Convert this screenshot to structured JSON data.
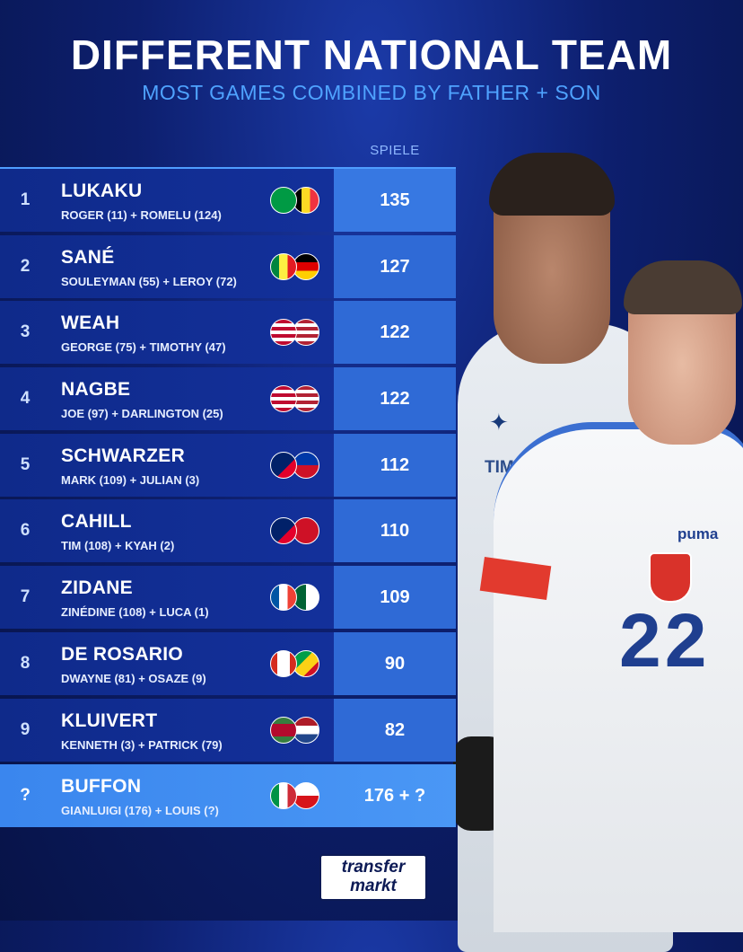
{
  "header": {
    "title": "DIFFERENT NATIONAL TEAM",
    "subtitle": "MOST GAMES COMBINED BY FATHER + SON",
    "games_column": "SPIELE"
  },
  "rows": [
    {
      "rank": "1",
      "name": "LUKAKU",
      "detail": "ROGER (11) + ROMELU (124)",
      "games": "135",
      "flag_a": "linear-gradient(90deg,#009a44 0 100%)",
      "flag_b": "linear-gradient(90deg,#000 0 33%,#fdda24 33% 66%,#ef3340 66%)"
    },
    {
      "rank": "2",
      "name": "SANÉ",
      "detail": "SOULEYMAN (55) + LEROY (72)",
      "games": "127",
      "flag_a": "linear-gradient(90deg,#00853f 0 33%,#fdef42 33% 66%,#e31b23 66%)",
      "flag_b": "linear-gradient(180deg,#000 0 33%,#dd0000 33% 66%,#ffce00 66%)"
    },
    {
      "rank": "3",
      "name": "WEAH",
      "detail": "GEORGE (75) + TIMOTHY (47)",
      "games": "122",
      "flag_a": "repeating-linear-gradient(180deg,#bf0a30 0 4px,#fff 4px 8px)",
      "flag_b": "repeating-linear-gradient(180deg,#b22234 0 4px,#fff 4px 8px)"
    },
    {
      "rank": "4",
      "name": "NAGBE",
      "detail": "JOE (97) + DARLINGTON (25)",
      "games": "122",
      "flag_a": "repeating-linear-gradient(180deg,#bf0a30 0 4px,#fff 4px 8px)",
      "flag_b": "repeating-linear-gradient(180deg,#b22234 0 4px,#fff 4px 8px)"
    },
    {
      "rank": "5",
      "name": "SCHWARZER",
      "detail": "MARK (109) + JULIAN (3)",
      "games": "112",
      "flag_a": "linear-gradient(135deg,#012169 0 60%,#e4002b 60%)",
      "flag_b": "linear-gradient(180deg,#0038a8 0 50%,#ce1126 50%)"
    },
    {
      "rank": "6",
      "name": "CAHILL",
      "detail": "TIM (108) + KYAH (2)",
      "games": "110",
      "flag_a": "linear-gradient(135deg,#012169 0 60%,#e4002b 60%)",
      "flag_b": "linear-gradient(180deg,#ce1126 0 100%)"
    },
    {
      "rank": "7",
      "name": "ZIDANE",
      "detail": "ZINÉDINE (108) + LUCA (1)",
      "games": "109",
      "flag_a": "linear-gradient(90deg,#0055a4 0 33%,#fff 33% 66%,#ef4135 66%)",
      "flag_b": "linear-gradient(90deg,#006233 0 50%,#fff 50%)"
    },
    {
      "rank": "8",
      "name": "DE ROSARIO",
      "detail": "DWAYNE (81) + OSAZE (9)",
      "games": "90",
      "flag_a": "linear-gradient(90deg,#d52b1e 0 25%,#fff 25% 75%,#d52b1e 75%)",
      "flag_b": "linear-gradient(135deg,#009e49 0 40%,#fcd116 40% 70%,#ce1126 70%)"
    },
    {
      "rank": "9",
      "name": "KLUIVERT",
      "detail": "KENNETH (3) + PATRICK (79)",
      "games": "82",
      "flag_a": "linear-gradient(180deg,#377e3f 0 25%,#b40a2d 25% 75%,#377e3f 75%)",
      "flag_b": "linear-gradient(180deg,#ae1c28 0 33%,#fff 33% 66%,#21468b 66%)"
    },
    {
      "rank": "?",
      "name": "BUFFON",
      "detail": "GIANLUIGI (176) + LOUIS (?)",
      "games": "176 + ?",
      "flag_a": "linear-gradient(90deg,#009246 0 33%,#fff 33% 66%,#ce2b37 66%)",
      "flag_b": "linear-gradient(180deg,#fff 0 50%,#d7141a 50%)"
    }
  ],
  "illustration": {
    "sponsor_left": "TIM",
    "brand_right": "puma",
    "shirt_number": "22"
  },
  "logo": {
    "line1": "transfer",
    "line2": "markt"
  },
  "colors": {
    "accent": "#4fa3ff",
    "highlight": "#3a86ee",
    "background": "#0d1f6e"
  }
}
